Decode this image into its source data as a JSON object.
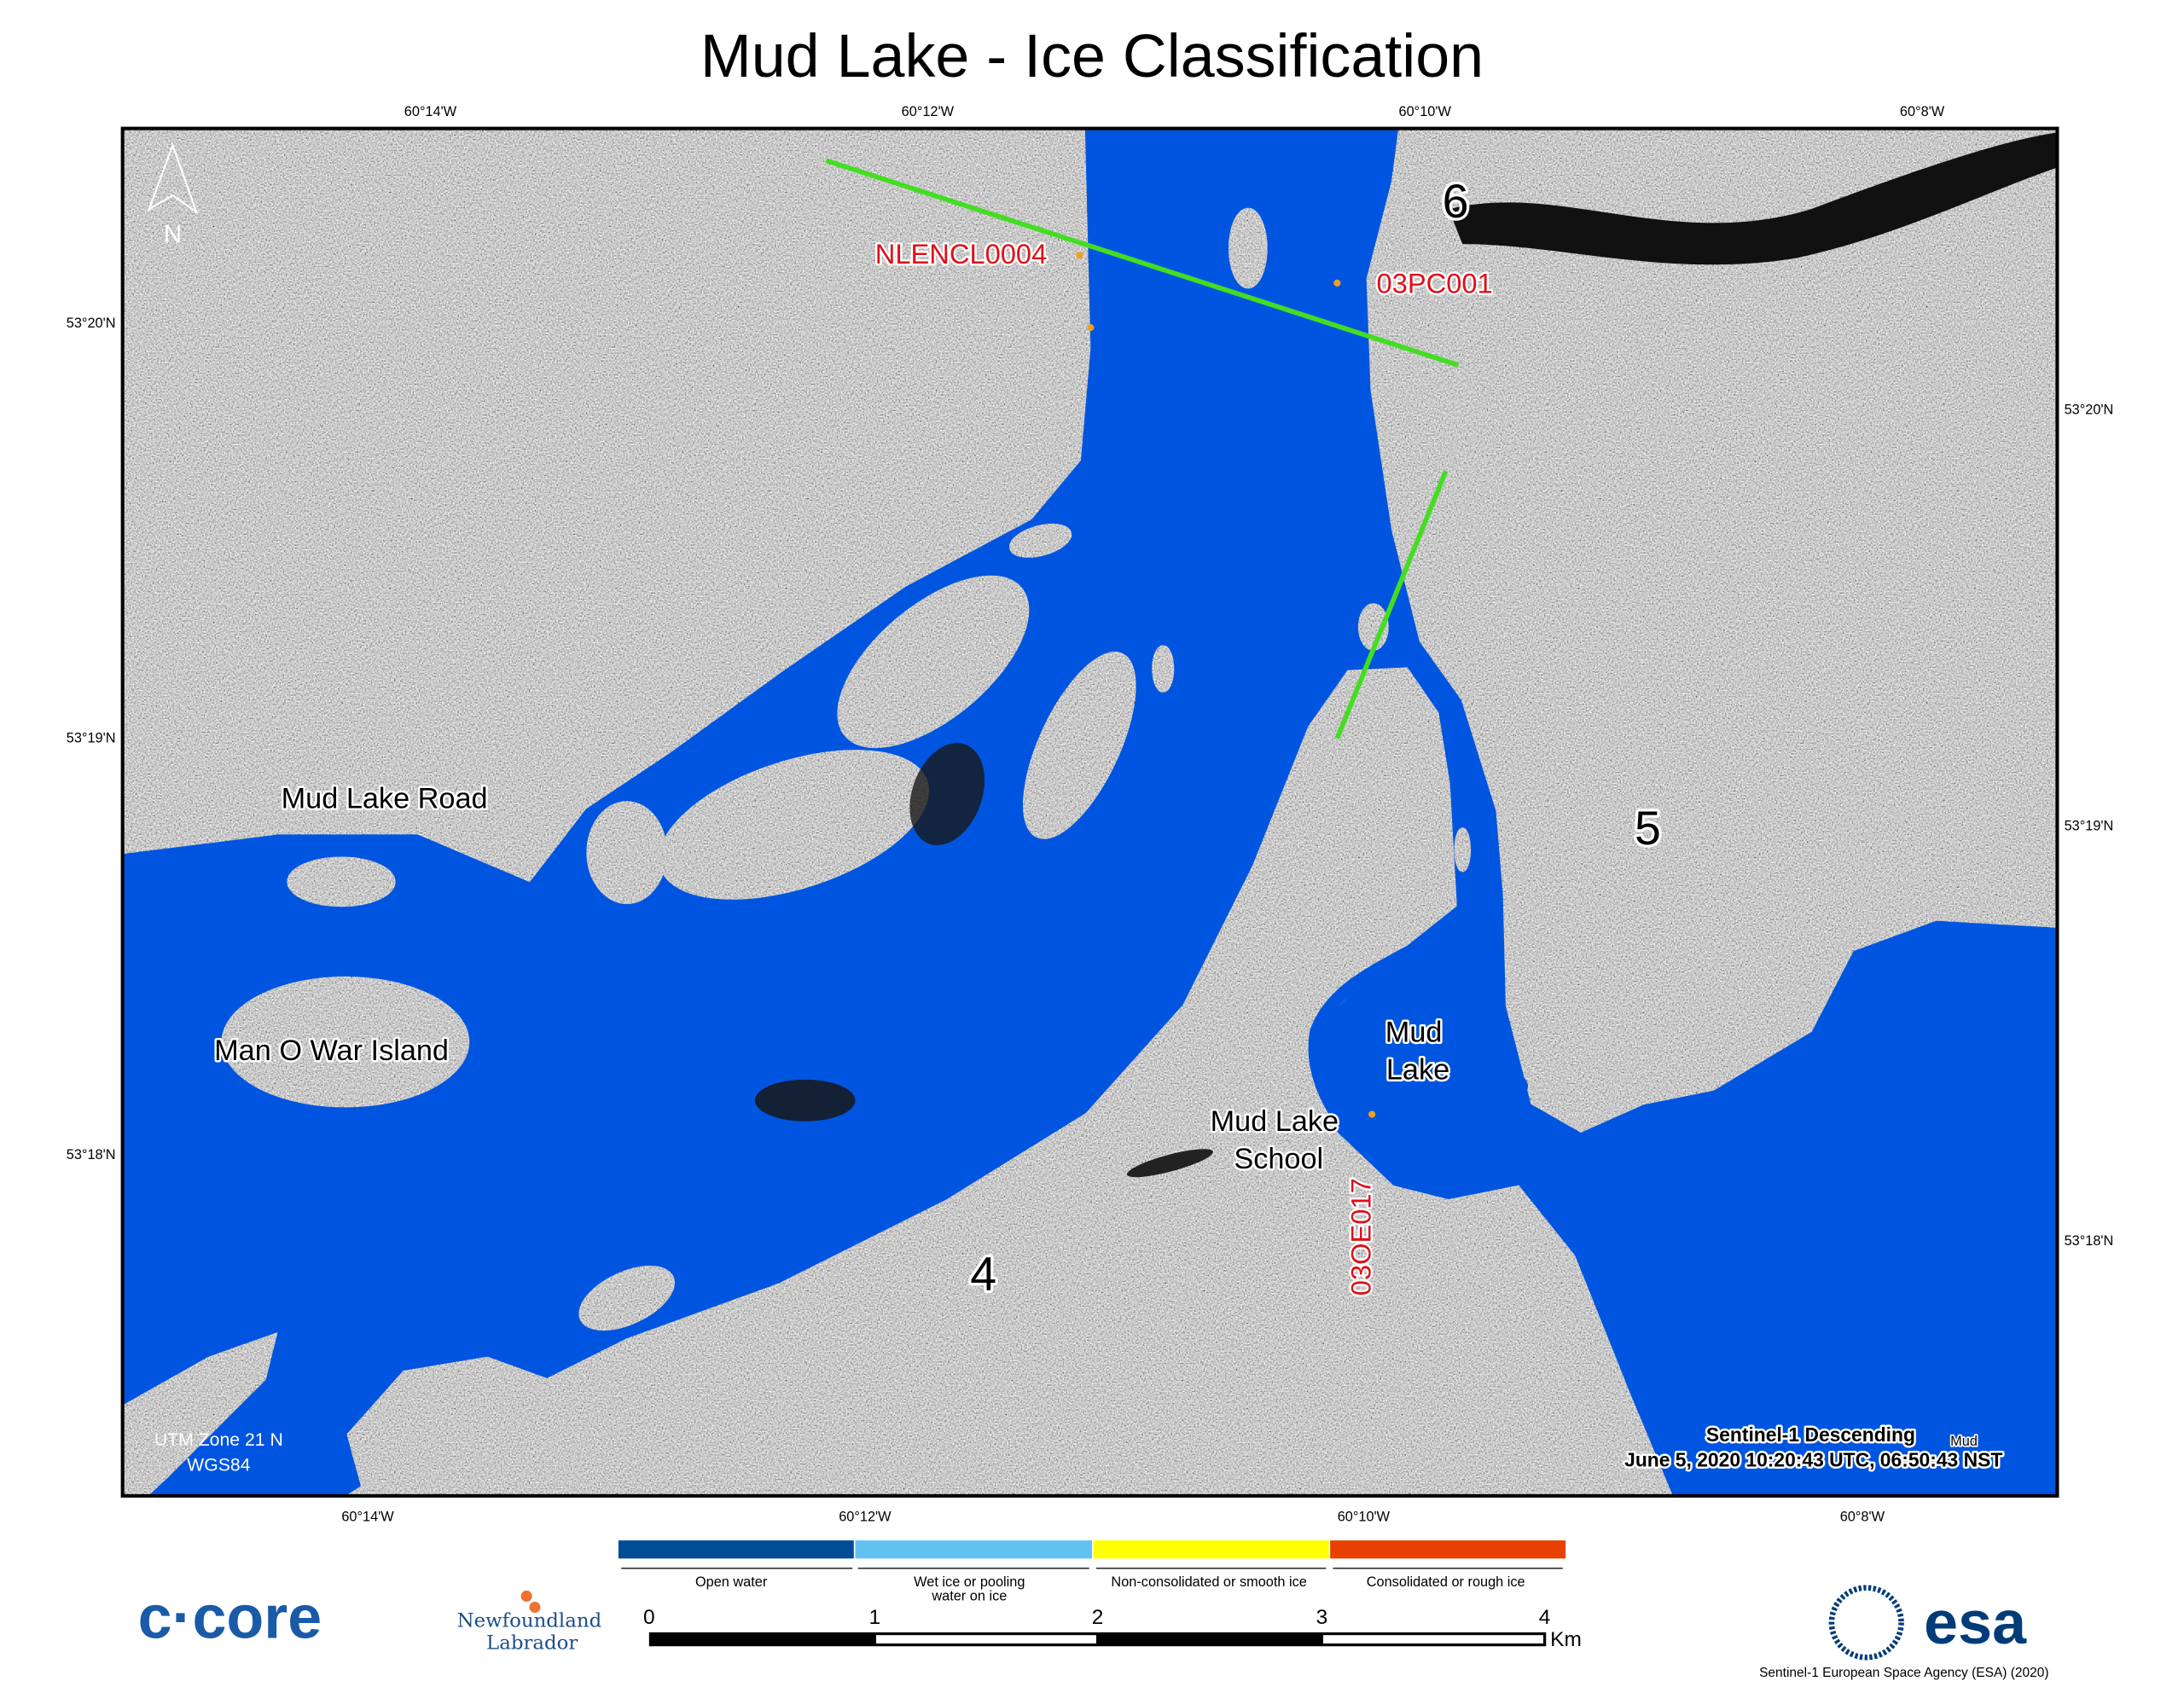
{
  "title": "Mud Lake - Ice Classification",
  "graticule": {
    "top_lon": [
      "60°14'W",
      "60°12'W",
      "60°10'W",
      "60°8'W"
    ],
    "bottom_lon": [
      "60°14'W",
      "60°12'W",
      "60°10'W",
      "60°8'W"
    ],
    "left_lat": [
      "53°20'N",
      "53°19'N",
      "53°18'N"
    ],
    "right_lat": [
      "53°20'N",
      "53°19'N",
      "53°18'N"
    ]
  },
  "north_arrow": {
    "label": "N",
    "icon": "north-arrow-icon"
  },
  "map_labels": {
    "station_1": "NLENCL0004",
    "station_2": "03PC001",
    "station_3": "03OE017",
    "zone_6": "6",
    "zone_5": "5",
    "zone_4": "4",
    "road": "Mud Lake Road",
    "island": "Man O War Island",
    "lake_line1": "Mud",
    "lake_line2": "Lake",
    "school_line1": "Mud Lake",
    "school_line2": "School"
  },
  "projection": {
    "line1": "UTM Zone 21 N",
    "line2": "WGS84"
  },
  "acquisition": {
    "line1": "Sentinel-1 Descending",
    "line2": "June 5, 2020 10:20:43 UTC, 06:50:43 NST",
    "tag": "Mud"
  },
  "legend": {
    "classes": [
      {
        "label": "Open water",
        "color": "#004c97"
      },
      {
        "label_line1": "Wet ice or pooling",
        "label_line2": "water on ice",
        "color": "#63c1f0"
      },
      {
        "label": "Non-consolidated or smooth ice",
        "color": "#ffff00"
      },
      {
        "label": "Consolidated or rough ice",
        "color": "#e84000"
      }
    ]
  },
  "scale_bar": {
    "ticks": [
      "0",
      "1",
      "2",
      "3",
      "4"
    ],
    "unit": "Km"
  },
  "colors": {
    "water": "#0055e0",
    "transect": "#44dd22",
    "station_label": "#e0101a",
    "station_dot": "#f0a020"
  },
  "logos": {
    "ccore": "c·core",
    "nl_line1": "Newfoundland",
    "nl_line2": "Labrador",
    "esa": "esa"
  },
  "credit": "Sentinel-1 European Space Agency (ESA) (2020)"
}
